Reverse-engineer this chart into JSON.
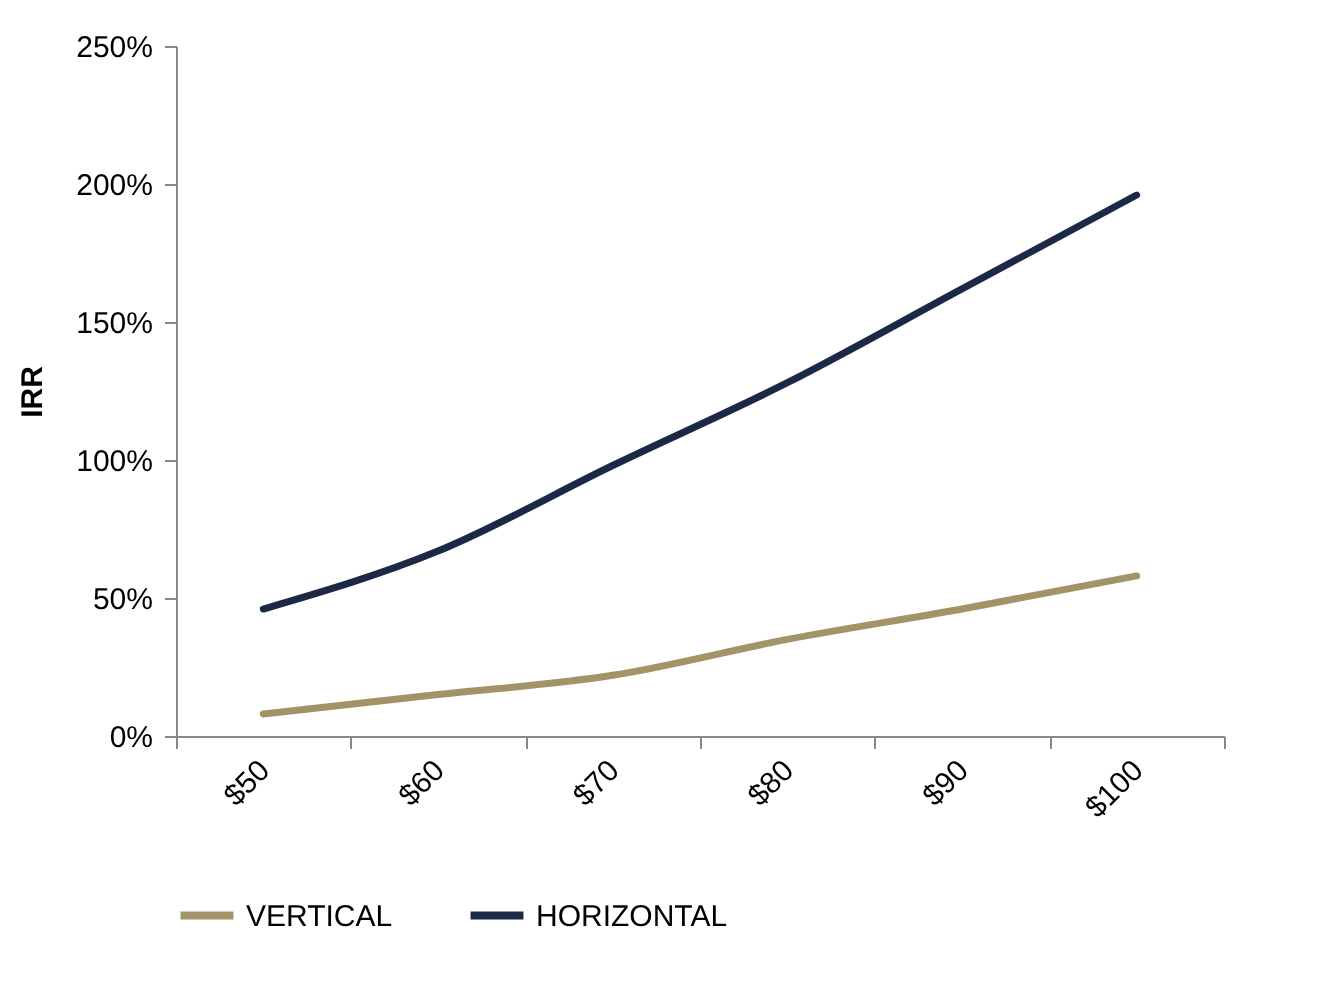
{
  "chart_data": {
    "type": "line",
    "ylabel": "IRR",
    "categories": [
      "$50",
      "$60",
      "$70",
      "$80",
      "$90",
      "$100"
    ],
    "series": [
      {
        "name": "VERTICAL",
        "color": "#a39468",
        "values": [
          8,
          15,
          22,
          35,
          46,
          58
        ]
      },
      {
        "name": "HORIZONTAL",
        "color": "#1b2947",
        "values": [
          46,
          67,
          98,
          128,
          162,
          196
        ]
      }
    ],
    "ylim": [
      0,
      250
    ],
    "yticks": [
      {
        "value": 0,
        "label": "0%"
      },
      {
        "value": 50,
        "label": "50%"
      },
      {
        "value": 100,
        "label": "100%"
      },
      {
        "value": 150,
        "label": "150%"
      },
      {
        "value": 200,
        "label": "200%"
      },
      {
        "value": 250,
        "label": "250%"
      }
    ],
    "legend": "bottom",
    "grid": false,
    "marker": "none",
    "line_style": "solid"
  }
}
